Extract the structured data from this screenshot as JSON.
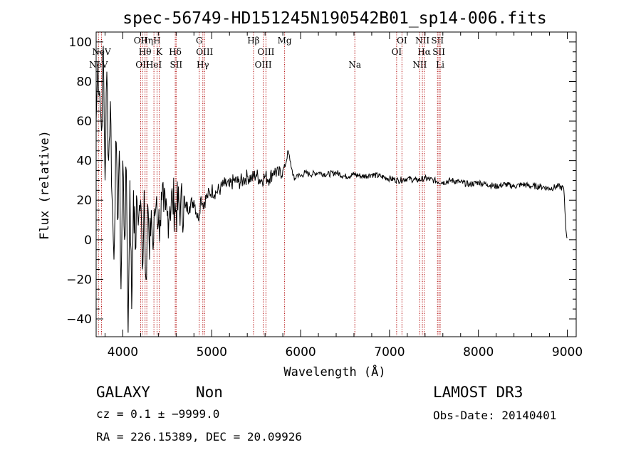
{
  "chart_data": {
    "type": "line",
    "title": "spec-56749-HD151245N190542B01_sp14-006.fits",
    "xlabel": "Wavelength (Å)",
    "ylabel": "Flux (relative)",
    "xlim": [
      3700,
      9100
    ],
    "ylim": [
      -49,
      105
    ],
    "xticks": [
      4000,
      5000,
      6000,
      7000,
      8000,
      9000
    ],
    "yticks": [
      -40,
      -20,
      0,
      20,
      40,
      60,
      80,
      100
    ],
    "xtick_labels": [
      "4000",
      "5000",
      "6000",
      "7000",
      "8000",
      "9000"
    ],
    "ytick_labels": [
      "−40",
      "−20",
      "0",
      "20",
      "40",
      "60",
      "80",
      "100"
    ],
    "series": [
      {
        "name": "flux",
        "x": [
          3700,
          3720,
          3740,
          3760,
          3780,
          3800,
          3820,
          3840,
          3860,
          3880,
          3900,
          3920,
          3940,
          3960,
          3980,
          4000,
          4020,
          4040,
          4060,
          4080,
          4100,
          4120,
          4140,
          4160,
          4180,
          4200,
          4220,
          4240,
          4260,
          4280,
          4300,
          4320,
          4340,
          4360,
          4380,
          4400,
          4420,
          4440,
          4460,
          4480,
          4500,
          4530,
          4560,
          4600,
          4650,
          4700,
          4750,
          4800,
          4850,
          4880,
          4900,
          4950,
          5000,
          5050,
          5100,
          5150,
          5200,
          5250,
          5300,
          5350,
          5400,
          5450,
          5500,
          5550,
          5600,
          5650,
          5700,
          5750,
          5800,
          5830,
          5860,
          5880,
          5900,
          5930,
          5960,
          6000,
          6050,
          6100,
          6200,
          6300,
          6400,
          6500,
          6600,
          6700,
          6800,
          6900,
          7000,
          7100,
          7200,
          7300,
          7400,
          7500,
          7600,
          7700,
          7800,
          7900,
          8000,
          8100,
          8200,
          8300,
          8400,
          8500,
          8600,
          8700,
          8800,
          8900,
          8960,
          8985,
          9000
        ],
        "values": [
          60,
          90,
          75,
          55,
          98,
          30,
          85,
          40,
          70,
          20,
          -10,
          50,
          10,
          45,
          -25,
          40,
          0,
          35,
          -47,
          30,
          -35,
          25,
          -5,
          20,
          12,
          20,
          -15,
          25,
          -20,
          18,
          -10,
          15,
          -5,
          12,
          22,
          8,
          10,
          20,
          14,
          15,
          12,
          17,
          20,
          15,
          18,
          16,
          17,
          20,
          10,
          22,
          18,
          22,
          25,
          24,
          26,
          28,
          27,
          30,
          29,
          30,
          32,
          31,
          33,
          30,
          32,
          31,
          35,
          33,
          35,
          38,
          45,
          40,
          36,
          30,
          33,
          32,
          34,
          33,
          34,
          33,
          34,
          32,
          33,
          32,
          33,
          32,
          31,
          30,
          31,
          30,
          31,
          30,
          29,
          30,
          29,
          28,
          29,
          28,
          27,
          28,
          27,
          28,
          27,
          27,
          26,
          27,
          26,
          5,
          1
        ]
      }
    ],
    "lines": [
      {
        "name": "NeV",
        "wl": 3726,
        "label": "NeV",
        "tier": 2
      },
      {
        "name": "NeV2",
        "wl": 3760,
        "label": "NeV",
        "tier": 1
      },
      {
        "name": "OII",
        "wl": 4200,
        "label": "OII",
        "tier": 0
      },
      {
        "name": "OII2",
        "wl": 4220,
        "label": "OII",
        "tier": 2
      },
      {
        "name": "Heta",
        "wl": 4270,
        "label": "Hη",
        "tier": 0
      },
      {
        "name": "Htheta",
        "wl": 4250,
        "label": "Hθ",
        "tier": 1
      },
      {
        "name": "HeI",
        "wl": 4350,
        "label": "HeI",
        "tier": 2
      },
      {
        "name": "H",
        "wl": 4385,
        "label": "H",
        "tier": 0
      },
      {
        "name": "K",
        "wl": 4410,
        "label": "K",
        "tier": 1
      },
      {
        "name": "Hdelta",
        "wl": 4590,
        "label": "Hδ",
        "tier": 1
      },
      {
        "name": "SII",
        "wl": 4600,
        "label": "SII",
        "tier": 2
      },
      {
        "name": "G",
        "wl": 4860,
        "label": "G",
        "tier": 0
      },
      {
        "name": "OIII1",
        "wl": 4920,
        "label": "OIII",
        "tier": 1
      },
      {
        "name": "Hgamma",
        "wl": 4900,
        "label": "Hγ",
        "tier": 2
      },
      {
        "name": "Hbeta",
        "wl": 5470,
        "label": "Hβ",
        "tier": 0
      },
      {
        "name": "OIII2",
        "wl": 5610,
        "label": "OIII",
        "tier": 1
      },
      {
        "name": "OIII3",
        "wl": 5580,
        "label": "OIII",
        "tier": 2
      },
      {
        "name": "Mg",
        "wl": 5820,
        "label": "Mg",
        "tier": 0
      },
      {
        "name": "Na",
        "wl": 6610,
        "label": "Na",
        "tier": 2
      },
      {
        "name": "OI1",
        "wl": 7140,
        "label": "OI",
        "tier": 0
      },
      {
        "name": "OI2",
        "wl": 7080,
        "label": "OI",
        "tier": 1
      },
      {
        "name": "NII1",
        "wl": 7370,
        "label": "NII",
        "tier": 0
      },
      {
        "name": "Halpha",
        "wl": 7390,
        "label": "Hα",
        "tier": 1
      },
      {
        "name": "NII2",
        "wl": 7340,
        "label": "NII",
        "tier": 2
      },
      {
        "name": "SII1",
        "wl": 7540,
        "label": "SII",
        "tier": 0
      },
      {
        "name": "SII2",
        "wl": 7555,
        "label": "SII",
        "tier": 1
      },
      {
        "name": "Li",
        "wl": 7570,
        "label": "Li",
        "tier": 2
      }
    ]
  },
  "footer": {
    "class_label": "GALAXY",
    "subclass_label": "Non",
    "cz_text": "cz = 0.1 ± −9999.0",
    "coord_text": "RA = 226.15389, DEC =  20.09926",
    "survey": "LAMOST DR3",
    "obs_date": "Obs-Date: 20140401"
  },
  "colors": {
    "spectrum": "#000000",
    "line_marker": "#b00000"
  }
}
